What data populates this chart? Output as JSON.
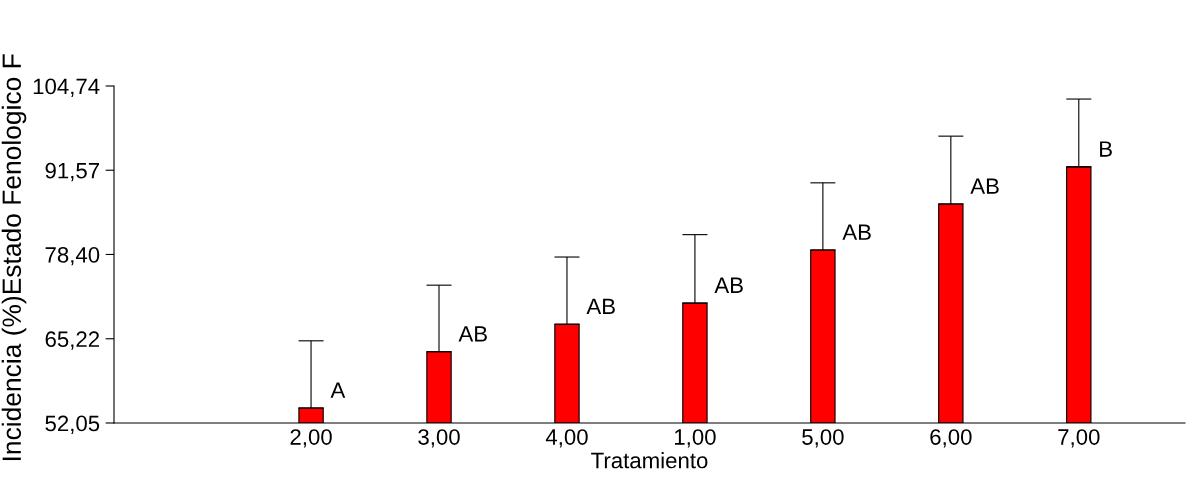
{
  "chart_data": {
    "type": "bar",
    "xlabel": "Tratamiento",
    "ylabel": "Incidencia (%)Estado Fenologico F",
    "categories": [
      "2,00",
      "3,00",
      "4,00",
      "1,00",
      "5,00",
      "6,00",
      "7,00"
    ],
    "values": [
      54.4,
      63.2,
      67.5,
      70.8,
      79.1,
      86.3,
      92.1
    ],
    "errors": [
      [
        54.4,
        64.9
      ],
      [
        63.2,
        73.6
      ],
      [
        67.5,
        78.0
      ],
      [
        70.8,
        81.5
      ],
      [
        79.1,
        89.6
      ],
      [
        86.3,
        96.9
      ],
      [
        92.1,
        102.7
      ]
    ],
    "color": "#ff0000",
    "ylim": [
      52.05,
      104.74
    ],
    "yticks": [
      {
        "value": 52.05,
        "label": "52,05"
      },
      {
        "value": 65.22,
        "label": "65,22"
      },
      {
        "value": 78.4,
        "label": "78,40"
      },
      {
        "value": 91.57,
        "label": "91,57"
      },
      {
        "value": 104.74,
        "label": "104,74"
      }
    ],
    "grid": false,
    "annotations": [
      {
        "text": "A",
        "x": "2,00",
        "y": 54.4
      },
      {
        "text": "AB",
        "x": "3,00",
        "y": 63.2
      },
      {
        "text": "AB",
        "x": "4,00",
        "y": 67.5
      },
      {
        "text": "AB",
        "x": "1,00",
        "y": 70.8
      },
      {
        "text": "AB",
        "x": "5,00",
        "y": 79.1
      },
      {
        "text": "AB",
        "x": "6,00",
        "y": 86.3
      },
      {
        "text": "B",
        "x": "7,00",
        "y": 92.1
      }
    ]
  }
}
